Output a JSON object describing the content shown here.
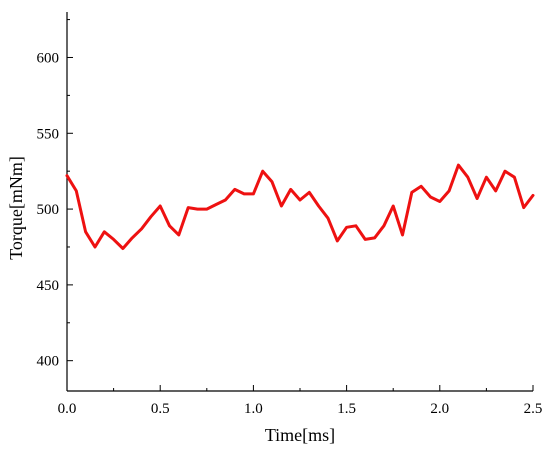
{
  "chart_data": {
    "type": "line",
    "title": "",
    "xlabel": "Time[ms]",
    "ylabel": "Torque[mNm]",
    "xlim": [
      0.0,
      2.5
    ],
    "ylim": [
      380,
      630
    ],
    "xticks": [
      0.0,
      0.5,
      1.0,
      1.5,
      2.0,
      2.5
    ],
    "xtick_labels": [
      "0.0",
      "0.5",
      "1.0",
      "1.5",
      "2.0",
      "2.5"
    ],
    "yticks": [
      400,
      450,
      500,
      550,
      600
    ],
    "ytick_labels": [
      "400",
      "450",
      "500",
      "550",
      "600"
    ],
    "grid": false,
    "legend": "none",
    "color": "#ee1111",
    "series": [
      {
        "x": [
          0.0,
          0.05,
          0.1,
          0.15,
          0.2,
          0.25,
          0.3,
          0.35,
          0.4,
          0.45,
          0.5,
          0.55,
          0.6,
          0.65,
          0.7,
          0.75,
          0.8,
          0.85,
          0.9,
          0.95,
          1.0,
          1.05,
          1.1,
          1.15,
          1.2,
          1.25,
          1.3,
          1.35,
          1.4,
          1.45,
          1.5,
          1.55,
          1.6,
          1.65,
          1.7,
          1.75,
          1.8,
          1.85,
          1.9,
          1.95,
          2.0,
          2.05,
          2.1,
          2.15,
          2.2,
          2.25,
          2.3,
          2.35,
          2.4,
          2.45,
          2.5
        ],
        "y": [
          522,
          512,
          485,
          475,
          485,
          480,
          474,
          481,
          487,
          495,
          502,
          489,
          483,
          501,
          500,
          500,
          503,
          506,
          513,
          510,
          510,
          525,
          518,
          502,
          513,
          506,
          511,
          502,
          494,
          479,
          488,
          489,
          480,
          481,
          489,
          502,
          483,
          511,
          515,
          508,
          505,
          512,
          529,
          521,
          507,
          521,
          512,
          525,
          521,
          501,
          509
        ]
      }
    ]
  }
}
